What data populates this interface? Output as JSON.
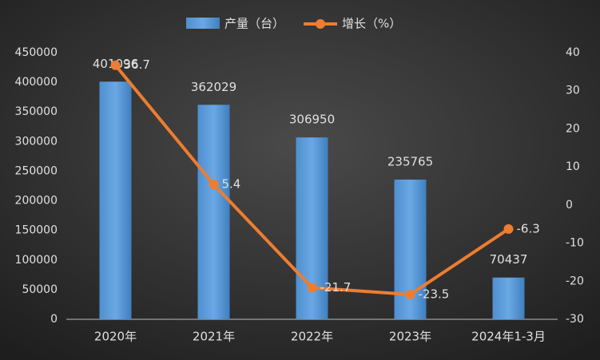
{
  "chart_data": {
    "type": "bar_line",
    "categories": [
      "2020年",
      "2021年",
      "2022年",
      "2023年",
      "2024年1-3月"
    ],
    "series": [
      {
        "name": "产量（台）",
        "color": "#5b9bd5",
        "values": [
          401096,
          362029,
          306950,
          235765,
          70437
        ]
      },
      {
        "name": "增长（%）",
        "color": "#ed7d31",
        "axis": "y2",
        "values": [
          36.7,
          5.4,
          -21.7,
          -23.5,
          -6.3
        ]
      }
    ],
    "ylim": [
      0,
      450000
    ],
    "yticks": [
      0,
      50000,
      100000,
      150000,
      200000,
      250000,
      300000,
      350000,
      400000,
      450000
    ],
    "y2lim": [
      -30,
      40
    ],
    "y2ticks": [
      -30,
      -20,
      -10,
      0,
      10,
      20,
      30,
      40
    ],
    "legend": "top"
  }
}
